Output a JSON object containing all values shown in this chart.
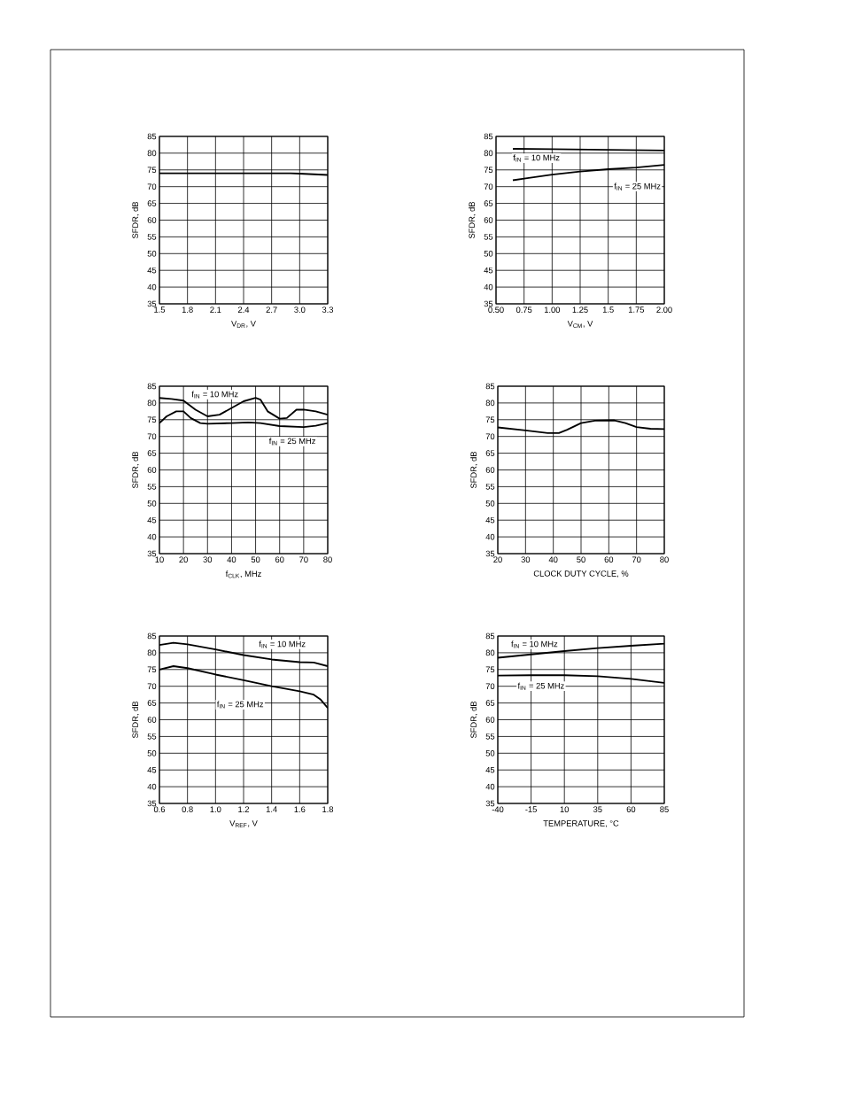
{
  "chart_data": [
    {
      "type": "line",
      "xlabel": "V$_{DR}$, V",
      "ylabel": "SFDR, dB",
      "xlim": [
        1.5,
        3.3
      ],
      "ylim": [
        35,
        85
      ],
      "xticks": [
        1.5,
        1.8,
        2.1,
        2.4,
        2.7,
        {
          "value": 3.0,
          "label": "3.0"
        },
        3.3
      ],
      "yticks": [
        35,
        40,
        45,
        50,
        55,
        60,
        65,
        70,
        75,
        80,
        85
      ],
      "grid": true,
      "marker": "none",
      "series": [
        {
          "color": "#000000",
          "x": [
            1.5,
            1.8,
            2.1,
            2.4,
            2.7,
            2.9,
            3.0,
            3.15,
            3.3
          ],
          "values": [
            74,
            74,
            74,
            74,
            74,
            74,
            73.9,
            73.7,
            73.5
          ]
        }
      ]
    },
    {
      "type": "line",
      "xlabel": "V$_{CM}$, V",
      "ylabel": "SFDR, dB",
      "xlim": [
        0.5,
        2.0
      ],
      "ylim": [
        35,
        85
      ],
      "xticks": [
        {
          "value": 0.5,
          "label": "0.50"
        },
        0.75,
        {
          "value": 1.0,
          "label": "1.00"
        },
        1.25,
        1.5,
        1.75,
        {
          "value": 2.0,
          "label": "2.00"
        }
      ],
      "yticks": [
        35,
        40,
        45,
        50,
        55,
        60,
        65,
        70,
        75,
        80,
        85
      ],
      "grid": true,
      "marker": "none",
      "series": [
        {
          "name": "f$_{IN}$ = 10 MHz",
          "color": "#000000",
          "x": [
            0.65,
            1.0,
            1.5,
            2.0
          ],
          "values": [
            81.3,
            81.2,
            81.0,
            80.8
          ]
        },
        {
          "name": "f$_{IN}$ = 25 MHz",
          "color": "#000000",
          "x": [
            0.65,
            0.75,
            1.0,
            1.25,
            1.5,
            1.75,
            2.0
          ],
          "values": [
            71.9,
            72.4,
            73.6,
            74.5,
            75.2,
            75.7,
            76.5
          ]
        }
      ]
    },
    {
      "type": "line",
      "xlabel": "f$_{CLK}$, MHz",
      "ylabel": "SFDR, dB",
      "xlim": [
        10,
        80
      ],
      "ylim": [
        35,
        85
      ],
      "xticks": [
        10,
        20,
        30,
        40,
        50,
        60,
        70,
        80
      ],
      "yticks": [
        35,
        40,
        45,
        50,
        55,
        60,
        65,
        70,
        75,
        80,
        85
      ],
      "grid": true,
      "marker": "none",
      "series": [
        {
          "name": "f$_{IN}$ = 10 MHz",
          "color": "#000000",
          "x": [
            10,
            15,
            20,
            25,
            30,
            35,
            40,
            45,
            50,
            52,
            55,
            60,
            63,
            67,
            70,
            75,
            80
          ],
          "values": [
            81.5,
            81.2,
            80.7,
            78,
            76,
            76.5,
            78.5,
            80.5,
            81.5,
            81,
            77.5,
            75.3,
            75.5,
            78,
            78,
            77.5,
            76.5
          ]
        },
        {
          "name": "f$_{IN}$ = 25 MHz",
          "color": "#000000",
          "x": [
            10,
            13,
            17,
            20,
            23,
            27,
            30,
            40,
            47,
            52,
            60,
            70,
            75,
            80
          ],
          "values": [
            74,
            76,
            77.5,
            77.5,
            75.5,
            74,
            73.8,
            74,
            74.2,
            74,
            73.1,
            72.8,
            73.2,
            74
          ]
        }
      ]
    },
    {
      "type": "line",
      "xlabel": "CLOCK DUTY CYCLE, %",
      "ylabel": "SFDR, dB",
      "xlim": [
        20,
        80
      ],
      "ylim": [
        35,
        85
      ],
      "xticks": [
        20,
        30,
        40,
        50,
        60,
        70,
        80
      ],
      "yticks": [
        35,
        40,
        45,
        50,
        55,
        60,
        65,
        70,
        75,
        80,
        85
      ],
      "grid": true,
      "marker": "none",
      "series": [
        {
          "color": "#000000",
          "x": [
            20,
            30,
            38,
            42,
            45,
            50,
            55,
            62,
            66,
            70,
            75,
            80
          ],
          "values": [
            72.7,
            71.8,
            71,
            71,
            72,
            74,
            74.7,
            74.8,
            74,
            72.8,
            72.3,
            72.2
          ]
        }
      ]
    },
    {
      "type": "line",
      "xlabel": "V$_{REF}$, V",
      "ylabel": "SFDR, dB",
      "xlim": [
        0.6,
        1.8
      ],
      "ylim": [
        35,
        85
      ],
      "xticks": [
        0.6,
        0.8,
        {
          "value": 1.0,
          "label": "1.0"
        },
        1.2,
        1.4,
        1.6,
        1.8
      ],
      "yticks": [
        35,
        40,
        45,
        50,
        55,
        60,
        65,
        70,
        75,
        80,
        85
      ],
      "grid": true,
      "marker": "none",
      "series": [
        {
          "name": "f$_{IN}$ = 10 MHz",
          "color": "#000000",
          "x": [
            0.6,
            0.7,
            0.8,
            1.0,
            1.2,
            1.4,
            1.6,
            1.7,
            1.8
          ],
          "values": [
            82.3,
            83,
            82.5,
            81,
            79.3,
            78,
            77.2,
            77.1,
            76
          ]
        },
        {
          "name": "f$_{IN}$ = 25 MHz",
          "color": "#000000",
          "x": [
            0.6,
            0.7,
            0.8,
            1.0,
            1.2,
            1.4,
            1.6,
            1.7,
            1.75,
            1.8
          ],
          "values": [
            75,
            76,
            75.4,
            73.5,
            71.8,
            70,
            68.5,
            67.5,
            66,
            63.5
          ]
        }
      ]
    },
    {
      "type": "line",
      "xlabel": "TEMPERATURE, °C",
      "ylabel": "SFDR, dB",
      "xlim": [
        -40,
        85
      ],
      "ylim": [
        35,
        85
      ],
      "xticks": [
        -40,
        -15,
        10,
        35,
        60,
        85
      ],
      "yticks": [
        35,
        40,
        45,
        50,
        55,
        60,
        65,
        70,
        75,
        80,
        85
      ],
      "grid": true,
      "marker": "none",
      "series": [
        {
          "name": "f$_{IN}$ = 10 MHz",
          "color": "#000000",
          "x": [
            -40,
            -15,
            10,
            35,
            60,
            85
          ],
          "values": [
            78.5,
            79.5,
            80.5,
            81.4,
            82.1,
            82.7
          ]
        },
        {
          "name": "f$_{IN}$ = 25 MHz",
          "color": "#000000",
          "x": [
            -40,
            -15,
            10,
            35,
            60,
            85
          ],
          "values": [
            73.2,
            73.3,
            73.3,
            73,
            72.2,
            71
          ]
        }
      ]
    }
  ]
}
